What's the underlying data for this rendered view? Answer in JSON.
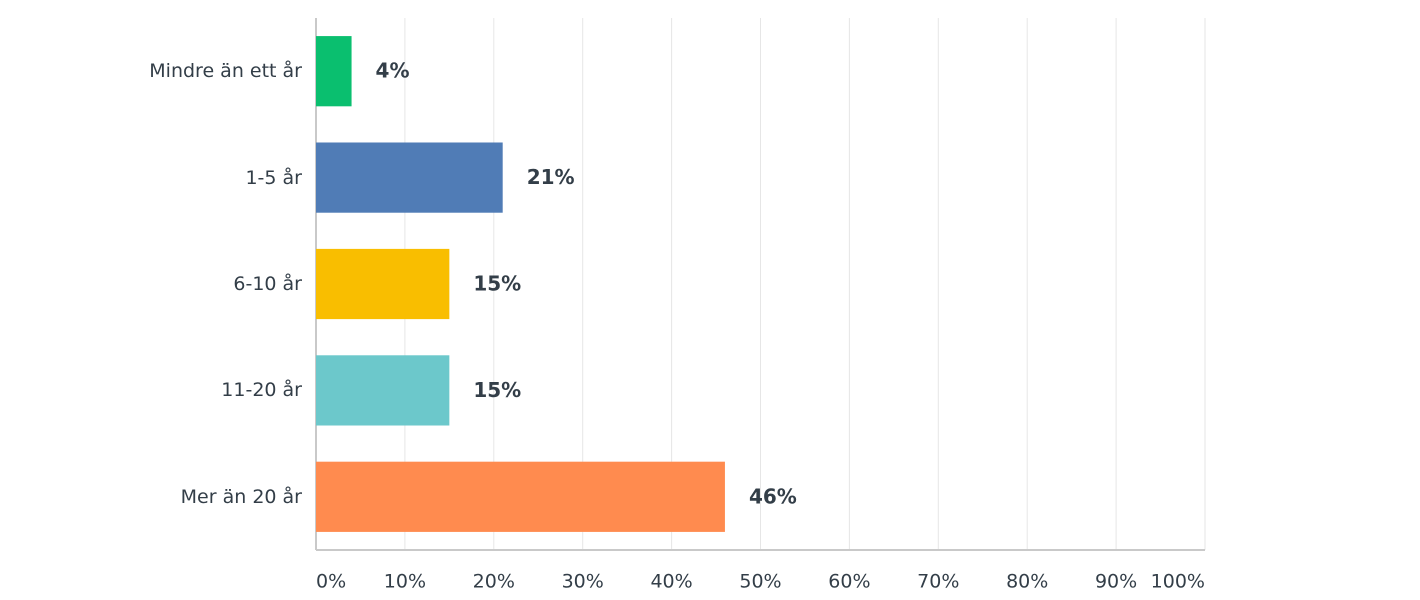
{
  "chart_data": {
    "type": "bar",
    "orientation": "horizontal",
    "categories": [
      "Mindre än ett år",
      "1-5 år",
      "6-10 år",
      "11-20 år",
      "Mer än 20 år"
    ],
    "values": [
      4,
      21,
      15,
      15,
      46
    ],
    "value_labels": [
      "4%",
      "21%",
      "15%",
      "15%",
      "46%"
    ],
    "colors": [
      "#0abf6f",
      "#507cb6",
      "#f9be00",
      "#6cc8cb",
      "#ff8b4f"
    ],
    "xlim": [
      0,
      100
    ],
    "xticks": [
      {
        "value": 0,
        "label": "0%"
      },
      {
        "value": 10,
        "label": "10%"
      },
      {
        "value": 20,
        "label": "20%"
      },
      {
        "value": 30,
        "label": "30%"
      },
      {
        "value": 40,
        "label": "40%"
      },
      {
        "value": 50,
        "label": "50%"
      },
      {
        "value": 60,
        "label": "60%"
      },
      {
        "value": 70,
        "label": "70%"
      },
      {
        "value": 80,
        "label": "80%"
      },
      {
        "value": 90,
        "label": "90%"
      },
      {
        "value": 100,
        "label": "100%"
      }
    ],
    "grid": true
  }
}
